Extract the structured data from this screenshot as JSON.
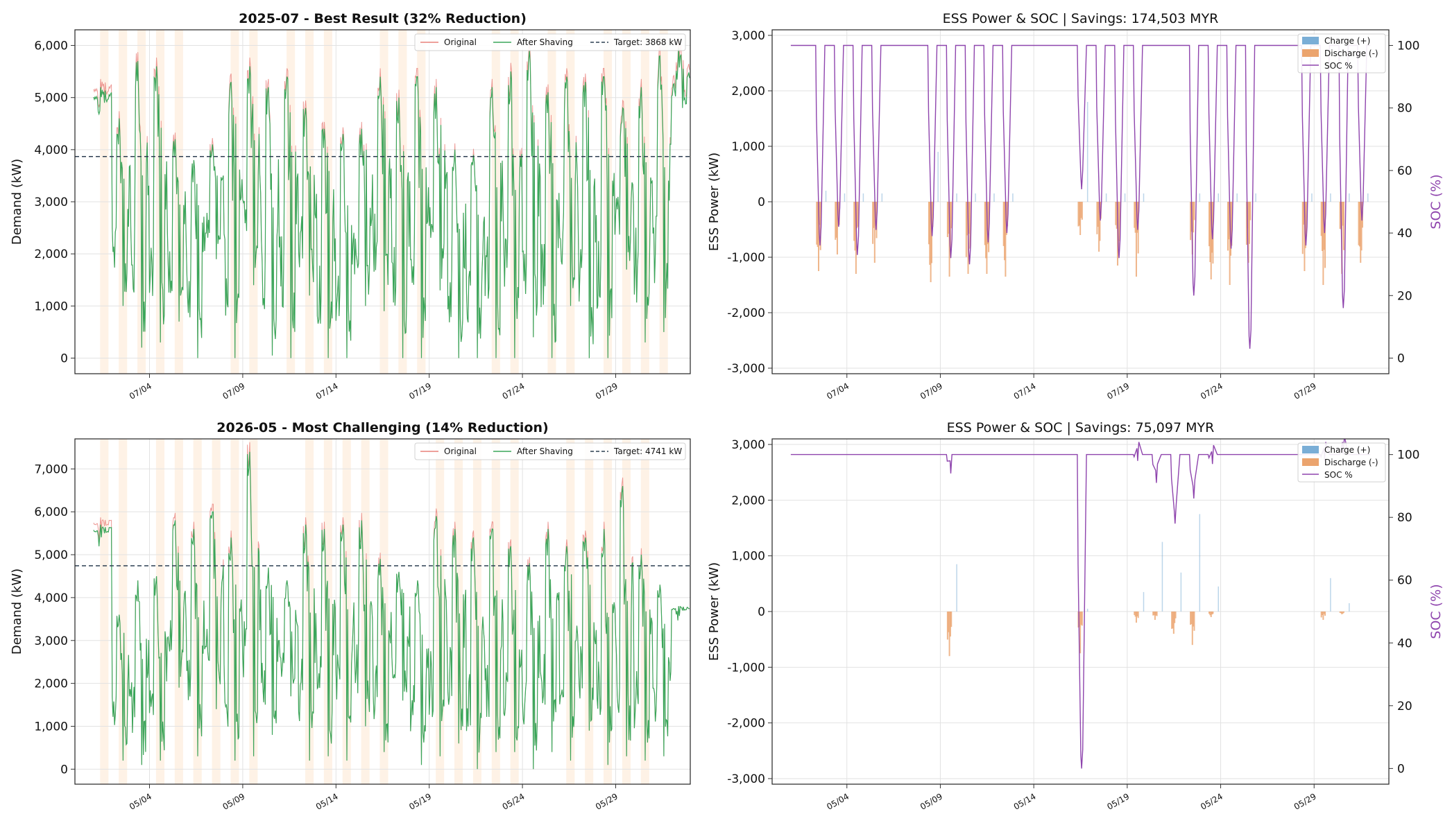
{
  "chart_data": [
    {
      "type": "line",
      "title": "2025-07 - Best Result (32% Reduction)",
      "xlabel": "",
      "ylabel": "Demand (kW)",
      "ylim": [
        -300,
        6300
      ],
      "yticks": [
        "0",
        "1,000",
        "2,000",
        "3,000",
        "4,000",
        "5,000",
        "6,000"
      ],
      "ytick_values": [
        0,
        1000,
        2000,
        3000,
        4000,
        5000,
        6000
      ],
      "x_range": [
        "2025-06-30",
        "2025-08-02"
      ],
      "xticks": [
        "07/04",
        "07/09",
        "07/14",
        "07/19",
        "07/24",
        "07/29"
      ],
      "xtick_dates": [
        "2025-07-04",
        "2025-07-09",
        "2025-07-14",
        "2025-07-19",
        "2025-07-24",
        "2025-07-29"
      ],
      "legend": {
        "position": "upper right",
        "entries": [
          "Original",
          "After Shaving",
          "Target: 3868 kW"
        ]
      },
      "target_kw": 3868,
      "series": [
        {
          "name": "Original",
          "color": "#e8807a"
        },
        {
          "name": "After Shaving",
          "color": "#3aa65a"
        }
      ],
      "x": [
        "2025-07-01",
        "2025-07-02",
        "2025-07-03",
        "2025-07-04",
        "2025-07-05",
        "2025-07-06",
        "2025-07-07",
        "2025-07-08",
        "2025-07-09",
        "2025-07-10",
        "2025-07-11",
        "2025-07-12",
        "2025-07-13",
        "2025-07-14",
        "2025-07-15",
        "2025-07-16",
        "2025-07-17",
        "2025-07-18",
        "2025-07-19",
        "2025-07-20",
        "2025-07-21",
        "2025-07-22",
        "2025-07-23",
        "2025-07-24",
        "2025-07-25",
        "2025-07-26",
        "2025-07-27",
        "2025-07-28",
        "2025-07-29",
        "2025-07-30",
        "2025-07-31",
        "2025-08-01"
      ],
      "daily_peak": [
        5200,
        4600,
        5700,
        5600,
        4200,
        3800,
        4100,
        5300,
        5600,
        5200,
        5400,
        4800,
        4400,
        4300,
        4400,
        5400,
        5000,
        5400,
        5200,
        4000,
        3900,
        5200,
        5500,
        5900,
        5100,
        5400,
        5300,
        5400,
        4800,
        5200,
        5800,
        5950
      ],
      "daily_min": [
        4900,
        1000,
        200,
        300,
        700,
        0,
        1900,
        0,
        1400,
        50,
        0,
        1200,
        0,
        0,
        1000,
        900,
        0,
        0,
        1300,
        0,
        0,
        0,
        0,
        400,
        0,
        1000,
        0,
        0,
        1700,
        300,
        500,
        4800
      ],
      "shaded_days": [
        "07/01",
        "07/02",
        "07/03",
        "07/04",
        "07/05",
        "07/08",
        "07/09",
        "07/11",
        "07/12",
        "07/13",
        "07/16",
        "07/17",
        "07/18",
        "07/22",
        "07/23",
        "07/25",
        "07/26",
        "07/28",
        "07/29",
        "07/30",
        "07/31"
      ]
    },
    {
      "type": "bar",
      "title": "ESS Power & SOC  |  Savings: 174,503 MYR",
      "xlabel": "",
      "ylabel": "ESS Power (kW)",
      "ylabel_right": "SOC (%)",
      "ylim": [
        -3100,
        3100
      ],
      "ylim_right": [
        -5,
        105
      ],
      "yticks": [
        "-3,000",
        "-2,000",
        "-1,000",
        "0",
        "1,000",
        "2,000",
        "3,000"
      ],
      "ytick_values": [
        -3000,
        -2000,
        -1000,
        0,
        1000,
        2000,
        3000
      ],
      "yticks_right": [
        "0",
        "20",
        "40",
        "60",
        "80",
        "100"
      ],
      "ytick_values_right": [
        0,
        20,
        40,
        60,
        80,
        100
      ],
      "x_range": [
        "2025-06-30",
        "2025-08-02"
      ],
      "xticks": [
        "07/04",
        "07/09",
        "07/14",
        "07/19",
        "07/24",
        "07/29"
      ],
      "xtick_dates": [
        "2025-07-04",
        "2025-07-09",
        "2025-07-14",
        "2025-07-19",
        "2025-07-24",
        "2025-07-29"
      ],
      "legend": {
        "position": "upper right",
        "entries": [
          "Charge (+)",
          "Discharge (-)",
          "SOC %"
        ]
      },
      "colors": {
        "charge": "#7aaed6",
        "discharge": "#eba46e",
        "soc": "#8e44ad"
      },
      "events": [
        {
          "day": "2025-07-02",
          "discharge": -1250,
          "charge": 200,
          "soc_min": 36
        },
        {
          "day": "2025-07-03",
          "discharge": -950,
          "charge": 150,
          "soc_min": 42
        },
        {
          "day": "2025-07-04",
          "discharge": -1300,
          "charge": 150,
          "soc_min": 33
        },
        {
          "day": "2025-07-05",
          "discharge": -1100,
          "charge": 150,
          "soc_min": 41
        },
        {
          "day": "2025-07-08",
          "discharge": -1450,
          "charge": 900,
          "soc_min": 39
        },
        {
          "day": "2025-07-09",
          "discharge": -1350,
          "charge": 150,
          "soc_min": 32
        },
        {
          "day": "2025-07-10",
          "discharge": -1300,
          "charge": 150,
          "soc_min": 30
        },
        {
          "day": "2025-07-11",
          "discharge": -1300,
          "charge": 150,
          "soc_min": 37
        },
        {
          "day": "2025-07-12",
          "discharge": -1350,
          "charge": 150,
          "soc_min": 40
        },
        {
          "day": "2025-07-16",
          "discharge": -600,
          "charge": 1800,
          "soc_min": 54
        },
        {
          "day": "2025-07-17",
          "discharge": -900,
          "charge": 150,
          "soc_min": 44
        },
        {
          "day": "2025-07-18",
          "discharge": -1150,
          "charge": 150,
          "soc_min": 32
        },
        {
          "day": "2025-07-19",
          "discharge": -1350,
          "charge": 150,
          "soc_min": 41
        },
        {
          "day": "2025-07-22",
          "discharge": -950,
          "charge": 150,
          "soc_min": 20
        },
        {
          "day": "2025-07-23",
          "discharge": -1400,
          "charge": 150,
          "soc_min": 38
        },
        {
          "day": "2025-07-24",
          "discharge": -1500,
          "charge": 150,
          "soc_min": 35
        },
        {
          "day": "2025-07-25",
          "discharge": -1100,
          "charge": 150,
          "soc_min": 3
        },
        {
          "day": "2025-07-28",
          "discharge": -1250,
          "charge": 150,
          "soc_min": 36
        },
        {
          "day": "2025-07-29",
          "discharge": -1500,
          "charge": 150,
          "soc_min": 40
        },
        {
          "day": "2025-07-30",
          "discharge": -1300,
          "charge": 150,
          "soc_min": 16
        },
        {
          "day": "2025-07-31",
          "discharge": -1100,
          "charge": 150,
          "soc_min": 44
        }
      ]
    },
    {
      "type": "line",
      "title": "2026-05 - Most Challenging (14% Reduction)",
      "xlabel": "",
      "ylabel": "Demand (kW)",
      "ylim": [
        -350,
        7700
      ],
      "yticks": [
        "0",
        "1,000",
        "2,000",
        "3,000",
        "4,000",
        "5,000",
        "6,000",
        "7,000"
      ],
      "ytick_values": [
        0,
        1000,
        2000,
        3000,
        4000,
        5000,
        6000,
        7000
      ],
      "x_range": [
        "2026-04-30",
        "2026-06-02"
      ],
      "xticks": [
        "05/04",
        "05/09",
        "05/14",
        "05/19",
        "05/24",
        "05/29"
      ],
      "xtick_dates": [
        "2026-05-04",
        "2026-05-09",
        "2026-05-14",
        "2026-05-19",
        "2026-05-24",
        "2026-05-29"
      ],
      "legend": {
        "position": "upper right",
        "entries": [
          "Original",
          "After Shaving",
          "Target: 4741 kW"
        ]
      },
      "target_kw": 4741,
      "series": [
        {
          "name": "Original",
          "color": "#e8807a"
        },
        {
          "name": "After Shaving",
          "color": "#3aa65a"
        }
      ],
      "x": [
        "2026-05-01",
        "2026-05-02",
        "2026-05-03",
        "2026-05-04",
        "2026-05-05",
        "2026-05-06",
        "2026-05-07",
        "2026-05-08",
        "2026-05-09",
        "2026-05-10",
        "2026-05-11",
        "2026-05-12",
        "2026-05-13",
        "2026-05-14",
        "2026-05-15",
        "2026-05-16",
        "2026-05-17",
        "2026-05-18",
        "2026-05-19",
        "2026-05-20",
        "2026-05-21",
        "2026-05-22",
        "2026-05-23",
        "2026-05-24",
        "2026-05-25",
        "2026-05-26",
        "2026-05-27",
        "2026-05-28",
        "2026-05-29",
        "2026-05-30",
        "2026-05-31",
        "2026-06-01"
      ],
      "daily_peak": [
        5700,
        3600,
        4400,
        4500,
        5800,
        5600,
        6000,
        5400,
        7400,
        4700,
        4400,
        5700,
        5600,
        5700,
        5800,
        4900,
        4600,
        4400,
        5900,
        5600,
        5400,
        5600,
        5200,
        4800,
        5600,
        5200,
        5400,
        5600,
        6600,
        5000,
        4300,
        3800
      ],
      "daily_min": [
        5500,
        200,
        100,
        200,
        1900,
        300,
        1400,
        200,
        300,
        800,
        1700,
        200,
        300,
        200,
        1000,
        400,
        1600,
        100,
        300,
        600,
        0,
        400,
        400,
        0,
        400,
        200,
        900,
        100,
        300,
        200,
        300,
        3700
      ],
      "shaded_days": [
        "05/01",
        "05/02",
        "05/04",
        "05/05",
        "05/06",
        "05/07",
        "05/08",
        "05/09",
        "05/12",
        "05/13",
        "05/14",
        "05/15",
        "05/16",
        "05/19",
        "05/20",
        "05/21",
        "05/22",
        "05/23",
        "05/26",
        "05/27",
        "05/28",
        "05/29",
        "05/30"
      ]
    },
    {
      "type": "bar",
      "title": "ESS Power & SOC  |  Savings: 75,097 MYR",
      "xlabel": "",
      "ylabel": "ESS Power (kW)",
      "ylabel_right": "SOC (%)",
      "ylim": [
        -3100,
        3100
      ],
      "ylim_right": [
        -5,
        105
      ],
      "yticks": [
        "-3,000",
        "-2,000",
        "-1,000",
        "0",
        "1,000",
        "2,000",
        "3,000"
      ],
      "ytick_values": [
        -3000,
        -2000,
        -1000,
        0,
        1000,
        2000,
        3000
      ],
      "yticks_right": [
        "0",
        "20",
        "40",
        "60",
        "80",
        "100"
      ],
      "ytick_values_right": [
        0,
        20,
        40,
        60,
        80,
        100
      ],
      "x_range": [
        "2026-04-30",
        "2026-06-02"
      ],
      "xticks": [
        "05/04",
        "05/09",
        "05/14",
        "05/19",
        "05/24",
        "05/29"
      ],
      "xtick_dates": [
        "2026-05-04",
        "2026-05-09",
        "2026-05-14",
        "2026-05-19",
        "2026-05-24",
        "2026-05-29"
      ],
      "legend": {
        "position": "upper right",
        "entries": [
          "Charge (+)",
          "Discharge (-)",
          "SOC %"
        ]
      },
      "colors": {
        "charge": "#7aaed6",
        "discharge": "#eba46e",
        "soc": "#8e44ad"
      },
      "events": [
        {
          "day": "2026-05-09",
          "discharge": -800,
          "charge": 850,
          "soc_min": 94
        },
        {
          "day": "2026-05-16",
          "discharge": -750,
          "charge": 50,
          "soc_min": 0
        },
        {
          "day": "2026-05-19",
          "discharge": -200,
          "charge": 350,
          "soc_min": 98
        },
        {
          "day": "2026-05-20",
          "discharge": -150,
          "charge": 1250,
          "soc_min": 91
        },
        {
          "day": "2026-05-21",
          "discharge": -400,
          "charge": 700,
          "soc_min": 78
        },
        {
          "day": "2026-05-22",
          "discharge": -600,
          "charge": 1750,
          "soc_min": 86
        },
        {
          "day": "2026-05-23",
          "discharge": -100,
          "charge": 450,
          "soc_min": 97
        },
        {
          "day": "2026-05-29",
          "discharge": -150,
          "charge": 600,
          "soc_min": 98
        },
        {
          "day": "2026-05-30",
          "discharge": -50,
          "charge": 150,
          "soc_min": 100
        }
      ]
    }
  ]
}
